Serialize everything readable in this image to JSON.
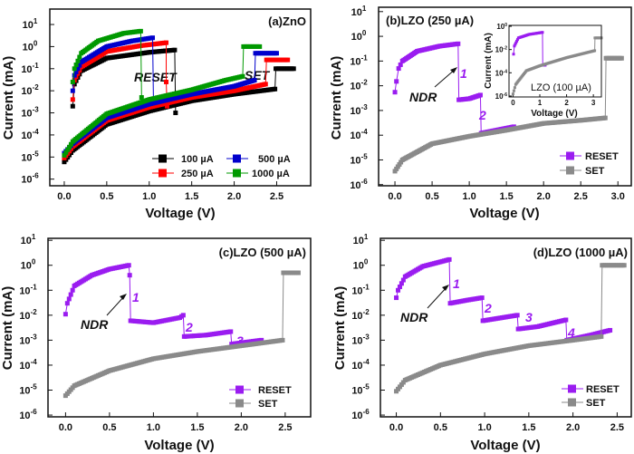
{
  "colors": {
    "100 µA": "#000000",
    "250 µA": "#ff0000",
    "500 µA": "#0000cc",
    "1000 µA": "#009900",
    "RESET": "#9a1cf0",
    "SET": "#8a8a8a"
  },
  "chart_data": [
    {
      "id": "a",
      "type": "line",
      "title": "(a)ZnO",
      "xlabel": "Voltage (V)",
      "ylabel": "Current (mA)",
      "yscale": "log",
      "xlim": [
        -0.17,
        2.9
      ],
      "ylim": [
        5e-07,
        50
      ],
      "xticks": [
        "0.0",
        "0.5",
        "1.0",
        "1.5",
        "2.0",
        "2.5"
      ],
      "yticks": [
        1,
        0,
        -1,
        -2,
        -3,
        -4,
        -5,
        -6
      ],
      "legend": "bottom-right",
      "annotations": [
        "RESET",
        "SET"
      ],
      "series": [
        {
          "name": "100 µA",
          "branches": [
            [
              [
                0.1,
                0.002
              ],
              [
                0.12,
                0.02
              ],
              [
                0.2,
                0.08
              ],
              [
                0.5,
                0.3
              ],
              [
                1.0,
                0.55
              ],
              [
                1.3,
                0.7
              ],
              [
                1.31,
                0.001
              ]
            ],
            [
              [
                0,
                6e-06
              ],
              [
                0.1,
                2e-05
              ],
              [
                0.5,
                0.0003
              ],
              [
                1.0,
                0.0012
              ],
              [
                1.5,
                0.0035
              ],
              [
                2.0,
                0.007
              ],
              [
                2.48,
                0.012
              ],
              [
                2.49,
                0.1
              ],
              [
                2.7,
                0.1
              ]
            ]
          ]
        },
        {
          "name": "250 µA",
          "branches": [
            [
              [
                0.1,
                0.004
              ],
              [
                0.12,
                0.03
              ],
              [
                0.2,
                0.12
              ],
              [
                0.5,
                0.6
              ],
              [
                0.9,
                1.1
              ],
              [
                1.2,
                1.5
              ],
              [
                1.2,
                0.025
              ],
              [
                1.21,
                0.002
              ]
            ],
            [
              [
                0,
                9e-06
              ],
              [
                0.1,
                3e-05
              ],
              [
                0.5,
                0.00045
              ],
              [
                1.0,
                0.0018
              ],
              [
                1.5,
                0.005
              ],
              [
                2.0,
                0.01
              ],
              [
                2.37,
                0.02
              ],
              [
                2.38,
                0.25
              ],
              [
                2.63,
                0.25
              ]
            ]
          ]
        },
        {
          "name": "500 µA",
          "branches": [
            [
              [
                0.1,
                0.01
              ],
              [
                0.12,
                0.05
              ],
              [
                0.2,
                0.2
              ],
              [
                0.5,
                1.0
              ],
              [
                0.8,
                1.8
              ],
              [
                1.04,
                2.5
              ],
              [
                1.05,
                0.003
              ]
            ],
            [
              [
                0,
                1.5e-05
              ],
              [
                0.1,
                4e-05
              ],
              [
                0.5,
                0.0006
              ],
              [
                1.0,
                0.0025
              ],
              [
                1.5,
                0.007
              ],
              [
                2.0,
                0.016
              ],
              [
                2.24,
                0.03
              ],
              [
                2.25,
                0.5
              ],
              [
                2.5,
                0.5
              ]
            ]
          ]
        },
        {
          "name": "1000 µA",
          "branches": [
            [
              [
                0.1,
                0.025
              ],
              [
                0.12,
                0.1
              ],
              [
                0.2,
                0.5
              ],
              [
                0.4,
                1.8
              ],
              [
                0.7,
                4.0
              ],
              [
                0.9,
                5.0
              ],
              [
                0.91,
                0.005
              ]
            ],
            [
              [
                0,
                1.2e-05
              ],
              [
                0.1,
                5e-05
              ],
              [
                0.5,
                0.0009
              ],
              [
                1.0,
                0.004
              ],
              [
                1.5,
                0.011
              ],
              [
                1.9,
                0.03
              ],
              [
                2.1,
                0.045
              ],
              [
                2.11,
                1.0
              ],
              [
                2.3,
                1.0
              ]
            ]
          ]
        }
      ]
    },
    {
      "id": "b",
      "type": "line",
      "title": "(b)LZO (250 µA)",
      "xlabel": "Voltage (V)",
      "ylabel": "Current (mA)",
      "yscale": "log",
      "xlim": [
        -0.22,
        3.18
      ],
      "ylim": [
        9e-07,
        15
      ],
      "xticks": [
        "0.0",
        "0.5",
        "1.0",
        "1.5",
        "2.0",
        "2.5",
        "3.0"
      ],
      "yticks": [
        1,
        0,
        -1,
        -2,
        -3,
        -4,
        -5,
        -6
      ],
      "legend": "bottom-right",
      "annotations": [
        "NDR",
        "1",
        "2"
      ],
      "series": [
        {
          "name": "RESET",
          "branches": [
            [
              [
                0,
                0.0055
              ],
              [
                0.02,
                0.015
              ],
              [
                0.05,
                0.05
              ],
              [
                0.1,
                0.1
              ],
              [
                0.3,
                0.25
              ],
              [
                0.6,
                0.4
              ],
              [
                0.85,
                0.5
              ],
              [
                0.86,
                0.0027
              ],
              [
                1.0,
                0.003
              ],
              [
                1.15,
                0.0042
              ],
              [
                1.16,
                0.00012
              ],
              [
                1.6,
                0.00022
              ]
            ]
          ]
        },
        {
          "name": "SET",
          "branches": [
            [
              [
                0,
                3.5e-06
              ],
              [
                0.1,
                1e-05
              ],
              [
                0.5,
                4.5e-05
              ],
              [
                1.0,
                9e-05
              ],
              [
                1.5,
                0.00016
              ],
              [
                2.0,
                0.0003
              ],
              [
                2.5,
                0.0004
              ],
              [
                2.83,
                0.0005
              ],
              [
                2.84,
                0.13
              ],
              [
                3.05,
                0.13
              ]
            ]
          ]
        }
      ],
      "inset": {
        "id": "inset",
        "label": "LZO (100 µA)",
        "xlabel": "Voltage (V)",
        "ylabel": "Current (mA)",
        "yscale": "log",
        "xlim": [
          -0.15,
          3.3
        ],
        "ylim": [
          8.3e-07,
          1.2
        ],
        "xticks": [
          "0",
          "1",
          "2",
          "3"
        ],
        "yticks": [
          0,
          -2,
          -4,
          -6
        ],
        "series": [
          {
            "name": "RESET",
            "branches": [
              [
                [
                  0.02,
                  0.004
                ],
                [
                  0.05,
                  0.02
                ],
                [
                  0.2,
                  0.1
                ],
                [
                  0.6,
                  0.2
                ],
                [
                  1.1,
                  0.3
                ],
                [
                  1.11,
                  0.00045
                ],
                [
                  1.2,
                  0.00045
                ]
              ]
            ]
          },
          {
            "name": "SET",
            "branches": [
              [
                [
                  0,
                  1.5e-06
                ],
                [
                  0.1,
                  1e-05
                ],
                [
                  0.5,
                  0.00015
                ],
                [
                  1.0,
                  0.0004
                ],
                [
                  2.0,
                  0.002
                ],
                [
                  3.05,
                  0.008
                ],
                [
                  3.06,
                  0.1
                ],
                [
                  3.3,
                  0.1
                ]
              ]
            ]
          }
        ]
      }
    },
    {
      "id": "c",
      "type": "line",
      "title": "(c)LZO (500 µA)",
      "xlabel": "Voltage (V)",
      "ylabel": "Current (mA)",
      "yscale": "log",
      "xlim": [
        -0.2,
        2.79
      ],
      "ylim": [
        8.5e-07,
        12
      ],
      "xticks": [
        "0.0",
        "0.5",
        "1.0",
        "1.5",
        "2.0",
        "2.5"
      ],
      "yticks": [
        1,
        0,
        -1,
        -2,
        -3,
        -4,
        -5,
        -6
      ],
      "legend": "bottom-right",
      "annotations": [
        "NDR",
        "1",
        "2",
        "3"
      ],
      "series": [
        {
          "name": "RESET",
          "branches": [
            [
              [
                0,
                0.011
              ],
              [
                0.02,
                0.03
              ],
              [
                0.1,
                0.15
              ],
              [
                0.3,
                0.4
              ],
              [
                0.5,
                0.7
              ],
              [
                0.72,
                1.0
              ],
              [
                0.73,
                0.4
              ],
              [
                0.74,
                0.006
              ],
              [
                1.0,
                0.005
              ],
              [
                1.3,
                0.008
              ],
              [
                1.34,
                0.01
              ],
              [
                1.35,
                0.0014
              ],
              [
                1.6,
                0.0016
              ],
              [
                1.88,
                0.0022
              ],
              [
                1.89,
                0.0007
              ],
              [
                2.23,
                0.001
              ]
            ]
          ]
        },
        {
          "name": "SET",
          "branches": [
            [
              [
                0,
                6e-06
              ],
              [
                0.1,
                1.5e-05
              ],
              [
                0.5,
                6e-05
              ],
              [
                1.0,
                0.00018
              ],
              [
                1.5,
                0.00035
              ],
              [
                2.0,
                0.0006
              ],
              [
                2.47,
                0.001
              ],
              [
                2.48,
                0.5
              ],
              [
                2.65,
                0.5
              ]
            ]
          ]
        }
      ]
    },
    {
      "id": "d",
      "type": "line",
      "title": "(d)LZO (1000 µA)",
      "xlabel": "Voltage (V)",
      "ylabel": "Current (mA)",
      "yscale": "log",
      "xlim": [
        -0.18,
        2.66
      ],
      "ylim": [
        8.5e-07,
        12
      ],
      "xticks": [
        "0.0",
        "0.5",
        "1.0",
        "1.5",
        "2.0",
        "2.5"
      ],
      "yticks": [
        1,
        0,
        -1,
        -2,
        -3,
        -4,
        -5,
        -6
      ],
      "legend": "bottom-right",
      "annotations": [
        "NDR",
        "1",
        "2",
        "3",
        "4"
      ],
      "series": [
        {
          "name": "RESET",
          "branches": [
            [
              [
                0,
                0.05
              ],
              [
                0.02,
                0.1
              ],
              [
                0.1,
                0.35
              ],
              [
                0.3,
                0.9
              ],
              [
                0.6,
                1.7
              ],
              [
                0.61,
                0.03
              ],
              [
                0.8,
                0.04
              ],
              [
                0.97,
                0.05
              ],
              [
                0.98,
                0.006
              ],
              [
                1.2,
                0.008
              ],
              [
                1.37,
                0.01
              ],
              [
                1.38,
                0.0028
              ],
              [
                1.6,
                0.0035
              ],
              [
                1.92,
                0.0065
              ],
              [
                1.93,
                0.001
              ],
              [
                2.2,
                0.0016
              ],
              [
                2.42,
                0.0025
              ]
            ]
          ]
        },
        {
          "name": "SET",
          "branches": [
            [
              [
                0,
                9e-06
              ],
              [
                0.1,
                2.5e-05
              ],
              [
                0.5,
                0.0001
              ],
              [
                1.0,
                0.00028
              ],
              [
                1.5,
                0.0006
              ],
              [
                2.0,
                0.001
              ],
              [
                2.32,
                0.0014
              ],
              [
                2.33,
                1.0
              ],
              [
                2.58,
                1.0
              ]
            ]
          ]
        }
      ]
    }
  ]
}
